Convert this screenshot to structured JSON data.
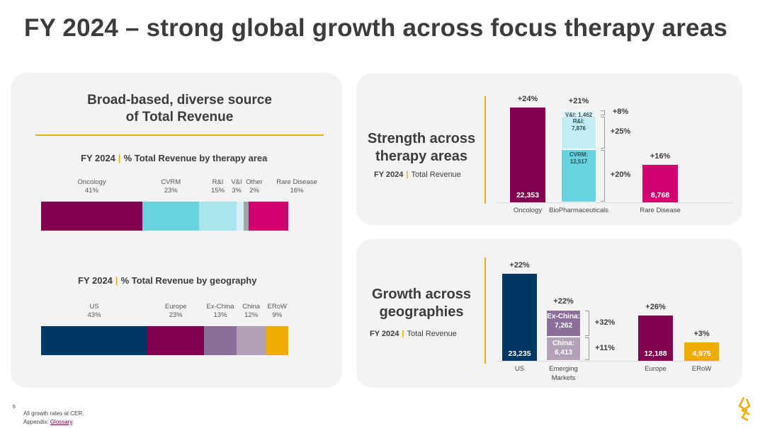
{
  "title": "FY 2024 – strong global growth across focus therapy areas",
  "left_panel": {
    "title_line1": "Broad-based, diverse source",
    "title_line2": "of Total Revenue",
    "therapy": {
      "heading_year": "FY 2024",
      "heading_text": "% Total Revenue by therapy area",
      "segments": [
        {
          "name": "Oncology",
          "pct": "41%",
          "value": 41,
          "color": "#830051"
        },
        {
          "name": "CVRM",
          "pct": "23%",
          "value": 23,
          "color": "#68d2df"
        },
        {
          "name": "R&I",
          "pct": "15%",
          "value": 15,
          "color": "#a8e5ec"
        },
        {
          "name": "V&I",
          "pct": "3%",
          "value": 3,
          "color": "#d4f0f4"
        },
        {
          "name": "Other",
          "pct": "2%",
          "value": 2,
          "color": "#9fa6a8"
        },
        {
          "name": "Rare Disease",
          "pct": "16%",
          "value": 16,
          "color": "#d0006f"
        }
      ]
    },
    "geography": {
      "heading_year": "FY 2024",
      "heading_text": "% Total Revenue by geography",
      "segments": [
        {
          "name": "US",
          "pct": "43%",
          "value": 43,
          "color": "#003865"
        },
        {
          "name": "Europe",
          "pct": "23%",
          "value": 23,
          "color": "#830051"
        },
        {
          "name": "Ex-China",
          "pct": "13%",
          "value": 13,
          "color": "#8c6e9b"
        },
        {
          "name": "China",
          "pct": "12%",
          "value": 12,
          "color": "#b3a1ba"
        },
        {
          "name": "ERoW",
          "pct": "9%",
          "value": 9,
          "color": "#f0ab00"
        }
      ]
    }
  },
  "therapy_panel": {
    "title_line1": "Strength across",
    "title_line2": "therapy areas",
    "sub_year": "FY 2024",
    "sub_text": "Total Revenue",
    "bars": [
      {
        "category": "Oncology",
        "growth": "+24%",
        "value": 22353,
        "value_label": "22,353",
        "color": "#830051"
      },
      {
        "category": "BioPharmaceuticals",
        "growth": "+21%",
        "stack": [
          {
            "name": "CVRM",
            "value": 12517,
            "label": "CVRM:",
            "value_label": "12,517",
            "growth": "+20%",
            "color": "#68d2df"
          },
          {
            "name": "R&I",
            "value": 7876,
            "label": "R&I:",
            "value_label": "7,876",
            "growth": "+25%",
            "color": "#c3edf2"
          },
          {
            "name": "V&I",
            "value": 1462,
            "label": "V&I: 1,462",
            "growth": "+8%",
            "color": "#dff5f8"
          }
        ]
      },
      {
        "category": "Rare Disease",
        "growth": "+16%",
        "value": 8768,
        "value_label": "8,768",
        "color": "#d0006f"
      }
    ]
  },
  "geo_panel": {
    "title_line1": "Growth across",
    "title_line2": "geographies",
    "sub_year": "FY 2024",
    "sub_text": "Total Revenue",
    "bars": [
      {
        "category": "US",
        "growth": "+22%",
        "value": 23235,
        "value_label": "23,235",
        "color": "#003865"
      },
      {
        "category": "Emerging Markets",
        "growth": "+22%",
        "stack": [
          {
            "name": "China",
            "value": 6413,
            "label": "China:",
            "value_label": "6,413",
            "growth": "+11%",
            "color": "#b3a1ba"
          },
          {
            "name": "Ex-China",
            "value": 7262,
            "label": "Ex-China:",
            "value_label": "7,262",
            "growth": "+32%",
            "color": "#8c6e9b"
          }
        ]
      },
      {
        "category": "Europe",
        "growth": "+26%",
        "value": 12188,
        "value_label": "12,188",
        "color": "#830051"
      },
      {
        "category": "ERoW",
        "growth": "+3%",
        "value": 4975,
        "value_label": "4,975",
        "color": "#f0ab00"
      }
    ]
  },
  "footer": {
    "page": "6",
    "note": "All growth rates at CER.",
    "appendix": "Appendix:",
    "glossary": "Glossary",
    "period": "."
  }
}
